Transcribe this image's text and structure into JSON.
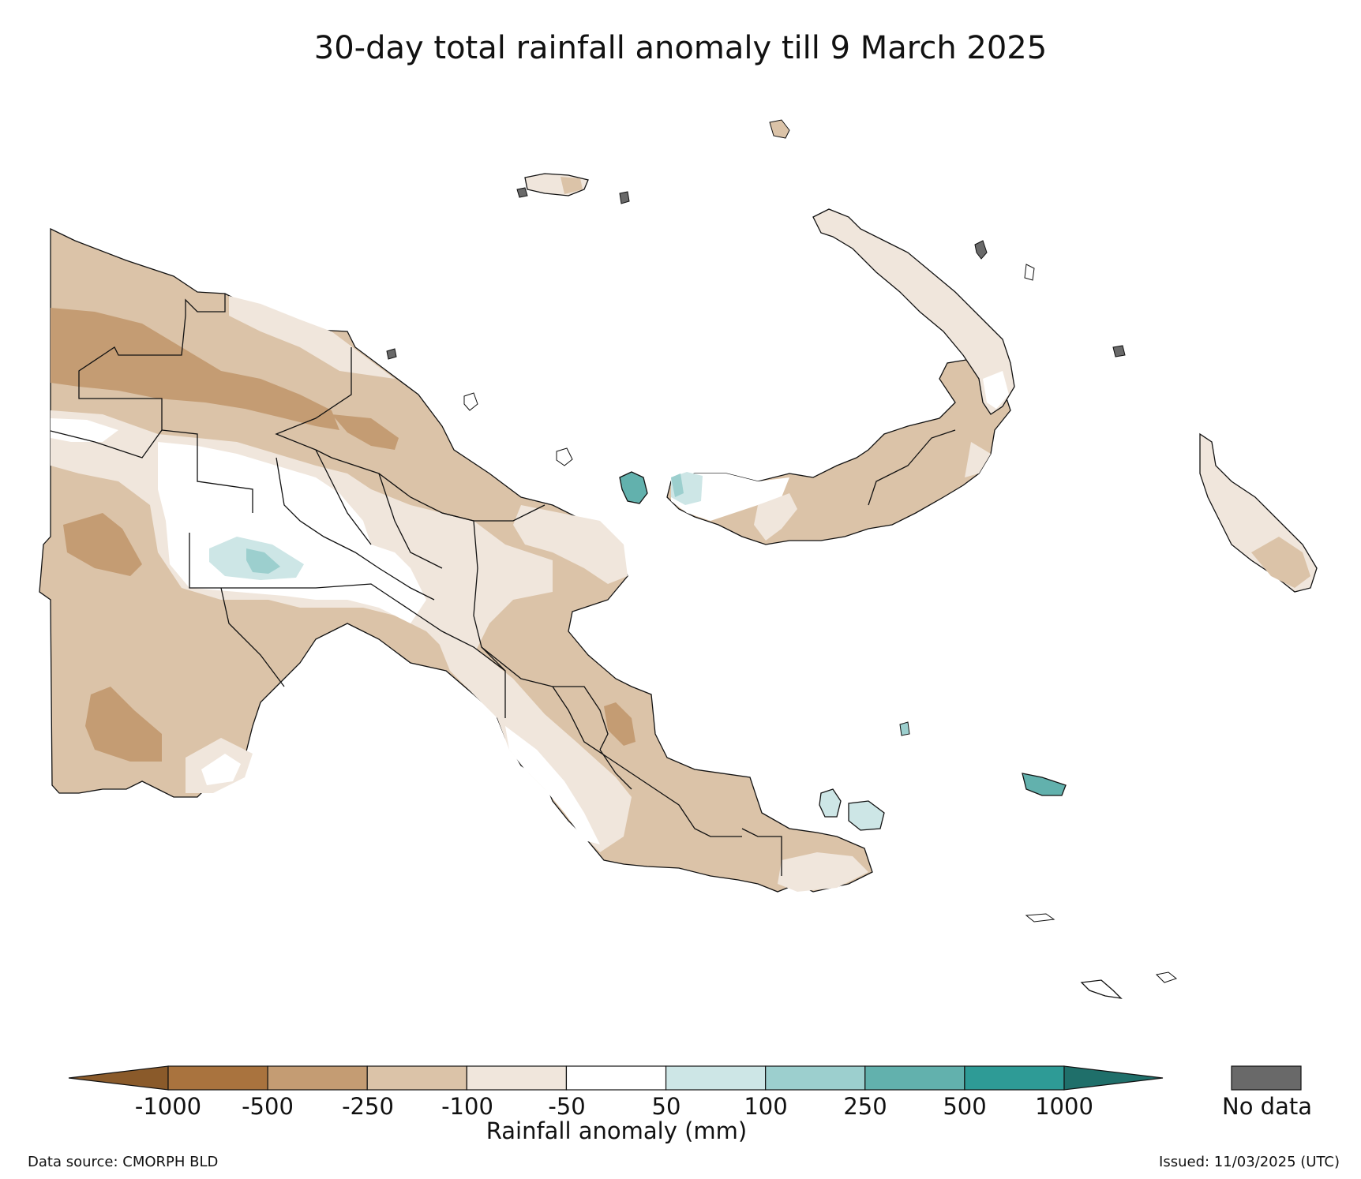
{
  "title": "30-day total rainfall anomaly till 9 March 2025",
  "colorbar": {
    "label": "Rainfall anomaly (mm)",
    "ticks": [
      "-1000",
      "-500",
      "-250",
      "-100",
      "-50",
      "50",
      "100",
      "250",
      "500",
      "1000"
    ],
    "bins": [
      {
        "range": "< -1000",
        "color": "#8a5a2a"
      },
      {
        "range": "-1000 to -500",
        "color": "#a9733e"
      },
      {
        "range": "-500 to -250",
        "color": "#c49c73"
      },
      {
        "range": "-250 to -100",
        "color": "#dbc3a8"
      },
      {
        "range": "-100 to -50",
        "color": "#f0e6dc"
      },
      {
        "range": "-50 to 50",
        "color": "#ffffff"
      },
      {
        "range": "50 to 100",
        "color": "#cde6e6"
      },
      {
        "range": "100 to 250",
        "color": "#9ccfce"
      },
      {
        "range": "250 to 500",
        "color": "#62b1ad"
      },
      {
        "range": "500 to 1000",
        "color": "#2e9b96"
      },
      {
        "range": "> 1000",
        "color": "#1f6f6a"
      }
    ],
    "no_data_label": "No data",
    "no_data_color": "#696969"
  },
  "footer": {
    "source": "Data source: CMORPH BLD",
    "issued": "Issued: 11/03/2025 (UTC)"
  }
}
